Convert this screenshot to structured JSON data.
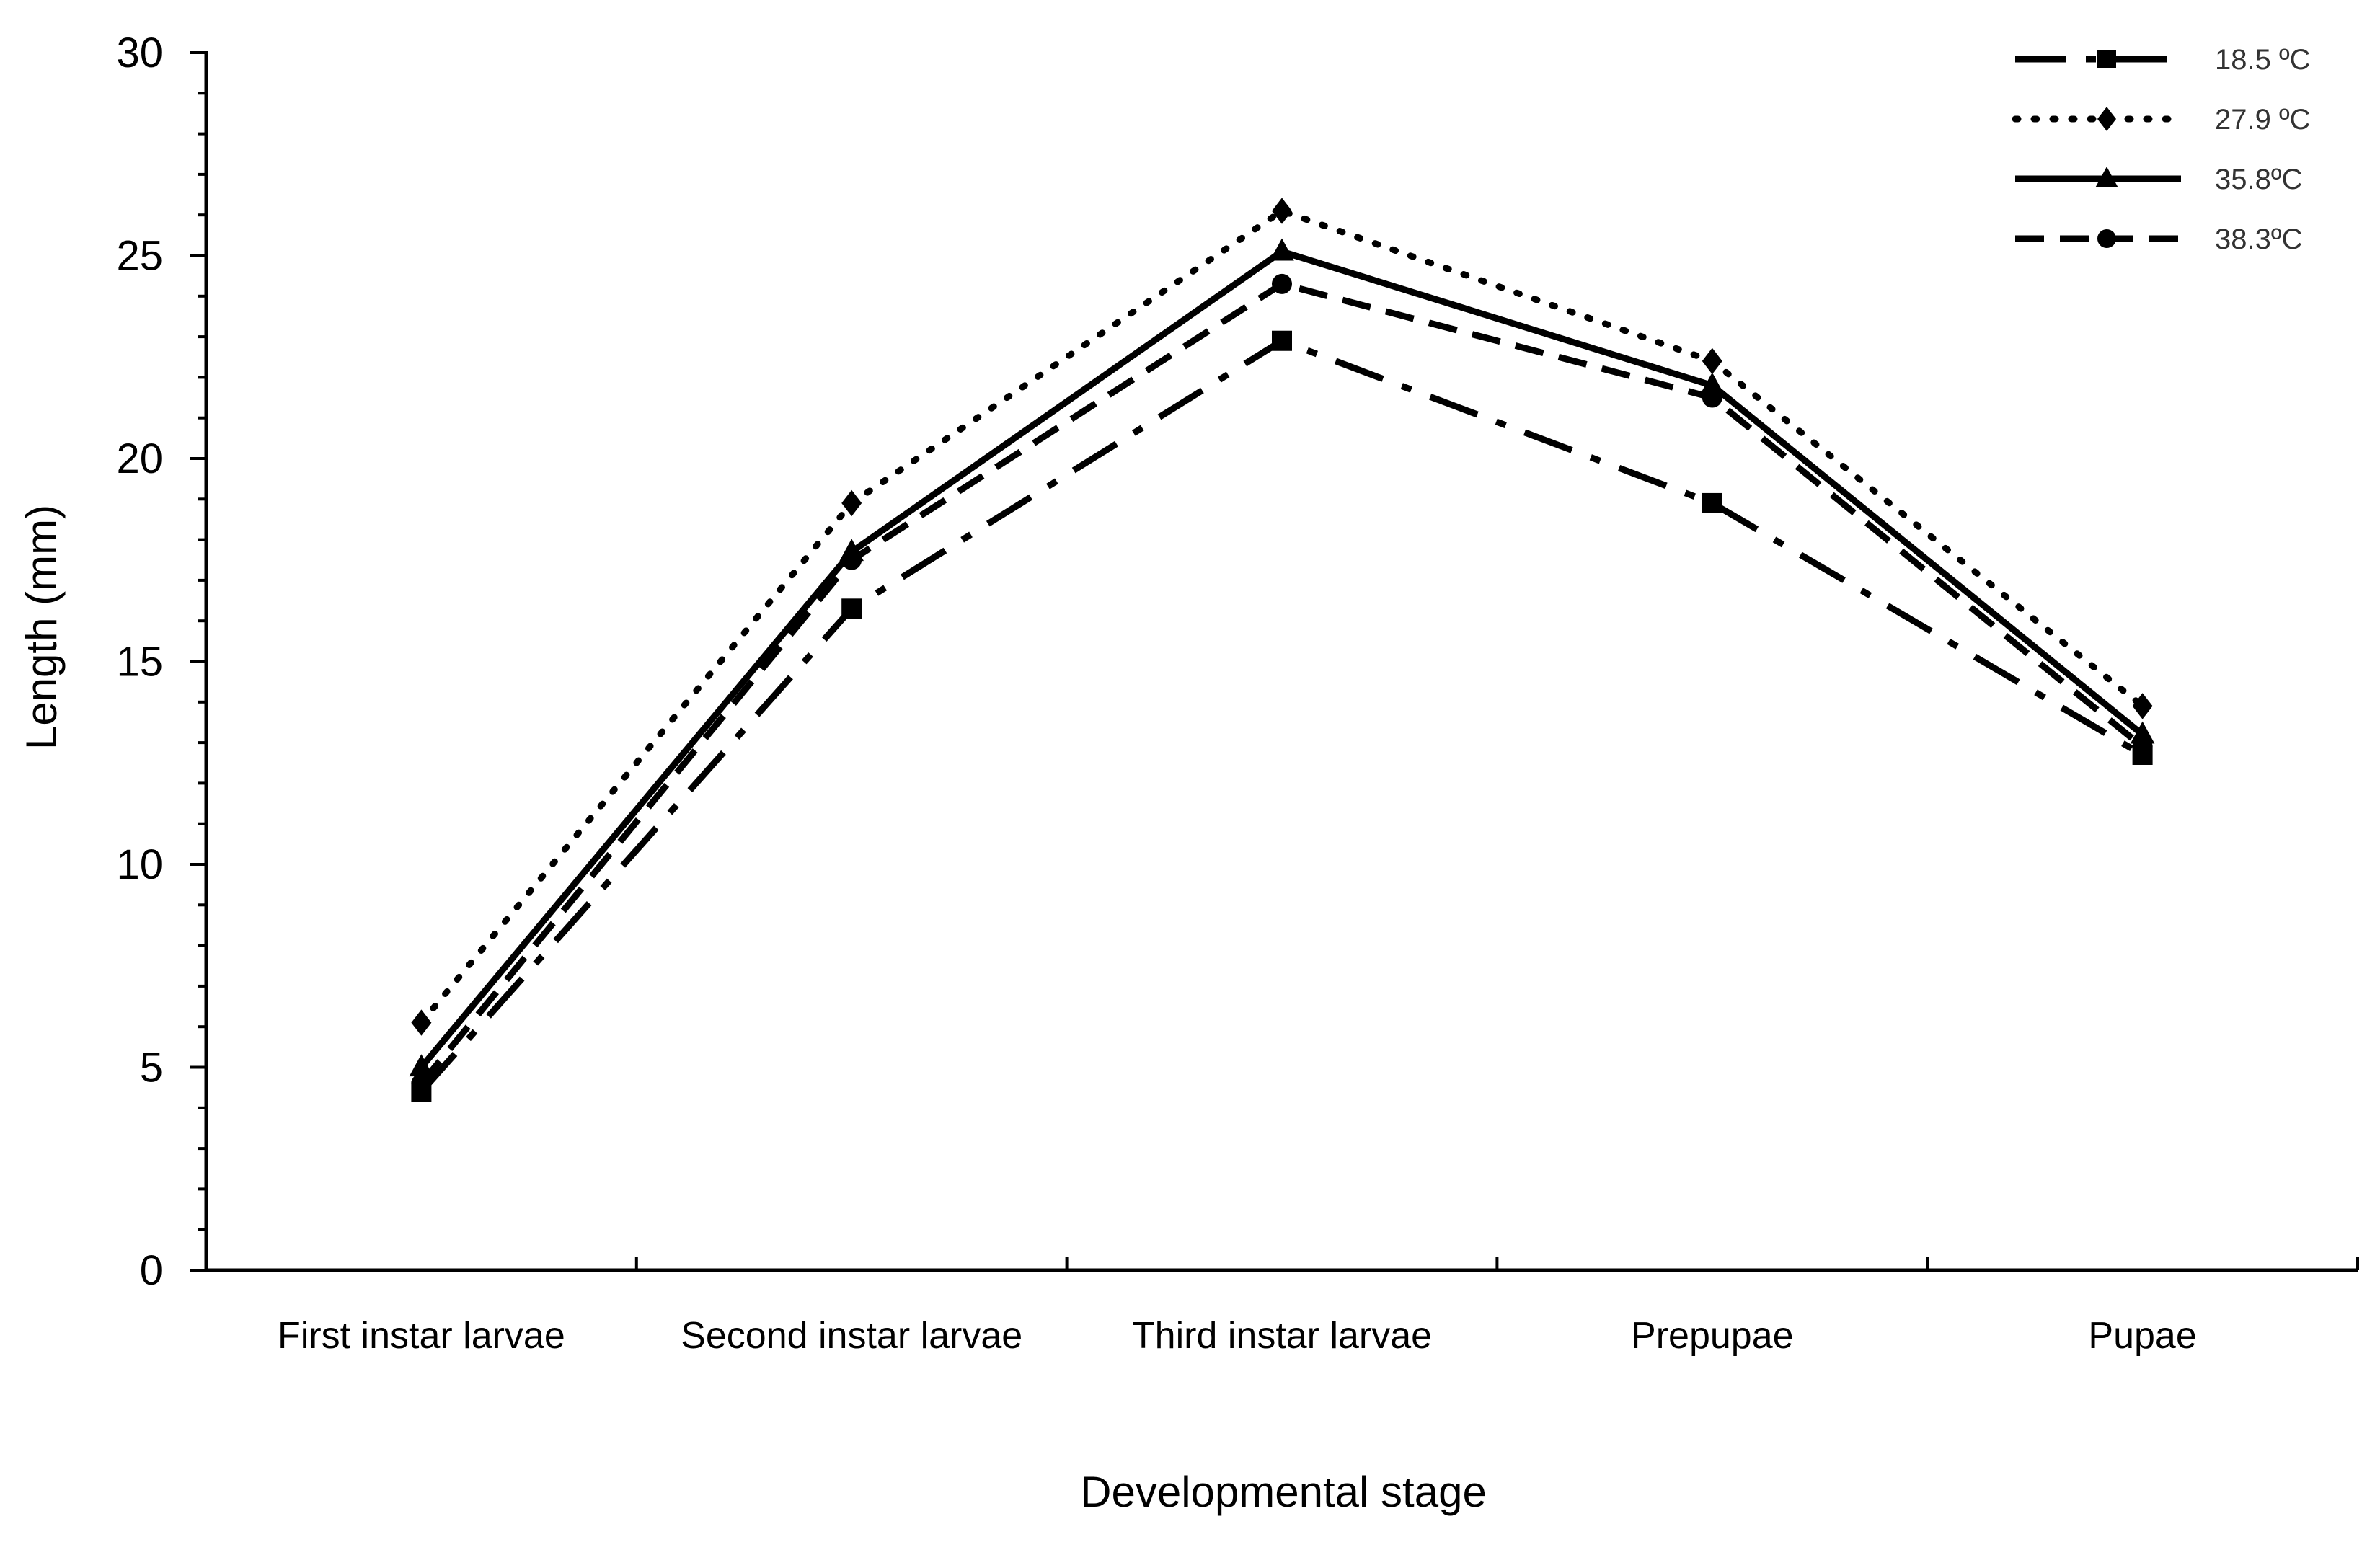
{
  "chart_data": {
    "type": "line",
    "title": "",
    "xlabel": "Developmental stage",
    "ylabel": "Length (mm)",
    "ylim": [
      0,
      30
    ],
    "yticks": [
      0,
      5,
      10,
      15,
      20,
      25,
      30
    ],
    "categories": [
      "First instar larvae",
      "Second instar larvae",
      "Third instar larvae",
      "Prepupae",
      "Pupae"
    ],
    "legend_position": "top-right",
    "grid": false,
    "series": [
      {
        "name": "18.5 ºC",
        "values": [
          4.4,
          16.3,
          22.9,
          18.9,
          12.7
        ],
        "marker": "square",
        "style": "dash-dot",
        "color": "#000000"
      },
      {
        "name": "27.9 ºC",
        "values": [
          6.1,
          18.9,
          26.1,
          22.4,
          13.9
        ],
        "marker": "diamond",
        "style": "dotted",
        "color": "#000000"
      },
      {
        "name": "35.8ºC",
        "values": [
          5.0,
          17.7,
          25.1,
          21.8,
          13.2
        ],
        "marker": "triangle",
        "style": "solid",
        "color": "#000000"
      },
      {
        "name": "38.3ºC",
        "values": [
          4.6,
          17.5,
          24.3,
          21.5,
          12.9
        ],
        "marker": "circle",
        "style": "dashed",
        "color": "#000000"
      }
    ]
  }
}
